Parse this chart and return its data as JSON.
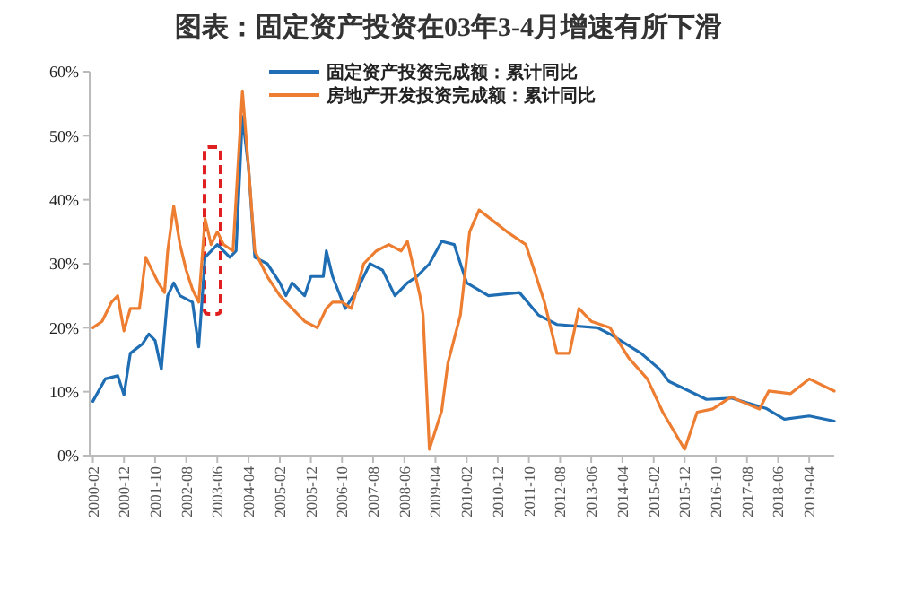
{
  "chart_data": {
    "type": "line",
    "title": "图表：固定资产投资在03年3-4月增速有所下滑",
    "series": [
      {
        "name": "固定资产投资完成额：累计同比",
        "color": "#1f6eb4",
        "x": [
          "2000-02",
          "2000-06",
          "2000-10",
          "2000-12",
          "2001-02",
          "2001-06",
          "2001-08",
          "2001-10",
          "2001-12",
          "2002-02",
          "2002-04",
          "2002-06",
          "2002-10",
          "2002-12",
          "2003-02",
          "2003-06",
          "2003-10",
          "2003-12",
          "2004-02",
          "2004-04",
          "2004-06",
          "2004-10",
          "2005-02",
          "2005-04",
          "2005-06",
          "2005-10",
          "2005-12",
          "2006-04",
          "2006-05",
          "2006-07",
          "2006-11",
          "2007-03",
          "2007-07",
          "2007-11",
          "2008-03",
          "2008-07",
          "2008-10",
          "2009-02",
          "2009-06",
          "2009-10",
          "2010-02",
          "2010-09",
          "2011-07",
          "2012-01",
          "2012-07",
          "2013-08",
          "2013-12",
          "2014-10",
          "2015-04",
          "2015-07",
          "2016-01",
          "2016-07",
          "2017-03",
          "2018-02",
          "2018-08",
          "2019-04",
          "2019-12"
        ],
        "values": [
          8.5,
          12,
          12.5,
          9.5,
          16,
          17.5,
          19,
          18,
          13.5,
          25,
          27,
          25,
          24,
          17,
          31,
          33,
          31,
          32,
          53,
          45,
          31,
          30,
          27,
          25,
          27,
          25,
          28,
          28,
          32,
          28,
          23,
          26,
          30,
          29,
          25,
          27,
          28,
          30,
          33.5,
          33,
          27,
          25,
          25.5,
          22,
          20.5,
          20,
          19,
          16,
          13.5,
          11.6,
          10.2,
          8.8,
          9,
          7.4,
          5.7,
          6.2,
          5.4
        ]
      },
      {
        "name": "房地产开发投资完成额：累计同比",
        "color": "#ed7d31",
        "x": [
          "2000-02",
          "2000-05",
          "2000-08",
          "2000-10",
          "2000-12",
          "2001-02",
          "2001-05",
          "2001-07",
          "2001-11",
          "2002-01",
          "2002-02",
          "2002-04",
          "2002-06",
          "2002-08",
          "2002-10",
          "2002-12",
          "2003-02",
          "2003-04",
          "2003-06",
          "2003-08",
          "2003-11",
          "2004-02",
          "2004-04",
          "2004-06",
          "2004-10",
          "2005-02",
          "2005-06",
          "2005-10",
          "2006-02",
          "2006-05",
          "2006-07",
          "2006-10",
          "2007-01",
          "2007-05",
          "2007-09",
          "2008-01",
          "2008-05",
          "2008-07",
          "2008-11",
          "2008-12",
          "2009-02",
          "2009-06",
          "2009-08",
          "2009-12",
          "2010-03",
          "2010-06",
          "2010-11",
          "2011-03",
          "2011-09",
          "2012-03",
          "2012-07",
          "2012-11",
          "2013-02",
          "2013-06",
          "2013-12",
          "2014-06",
          "2014-12",
          "2015-05",
          "2015-12",
          "2016-04",
          "2016-09",
          "2017-03",
          "2017-06",
          "2017-12",
          "2018-03",
          "2018-10",
          "2019-04",
          "2019-12"
        ],
        "values": [
          20,
          21,
          24,
          25,
          19.5,
          23,
          23,
          31,
          27,
          25.5,
          32,
          39,
          33,
          29,
          26,
          24,
          37,
          33,
          35,
          33,
          32,
          57,
          45,
          32,
          28,
          25,
          23,
          21,
          20,
          23,
          24,
          24,
          23,
          30,
          32,
          33,
          32,
          33.5,
          25,
          22,
          1,
          7,
          14.5,
          22,
          35,
          38.4,
          36.5,
          35,
          33,
          24,
          16,
          16,
          23,
          21,
          20,
          15.3,
          12,
          6.8,
          1,
          6.8,
          7.3,
          9.2,
          8.5,
          7.3,
          10.1,
          9.7,
          12,
          10.1
        ]
      }
    ],
    "xlim": [
      "2000-01",
      "2019-12"
    ],
    "xticks": [
      "2000-02",
      "2000-12",
      "2001-10",
      "2002-08",
      "2003-06",
      "2004-04",
      "2005-02",
      "2005-12",
      "2006-10",
      "2007-08",
      "2008-06",
      "2009-04",
      "2010-02",
      "2010-12",
      "2011-10",
      "2012-08",
      "2013-06",
      "2014-04",
      "2015-02",
      "2015-12",
      "2016-10",
      "2017-08",
      "2018-06",
      "2019-04"
    ],
    "ylim": [
      0,
      60
    ],
    "yticks": [
      {
        "value": 0,
        "label": "0%"
      },
      {
        "value": 10,
        "label": "10%"
      },
      {
        "value": 20,
        "label": "20%"
      },
      {
        "value": 30,
        "label": "30%"
      },
      {
        "value": 40,
        "label": "40%"
      },
      {
        "value": 50,
        "label": "50%"
      },
      {
        "value": 60,
        "label": "60%"
      }
    ],
    "legend": "top right",
    "grid": false,
    "marker": "none",
    "line_style": "solid"
  }
}
